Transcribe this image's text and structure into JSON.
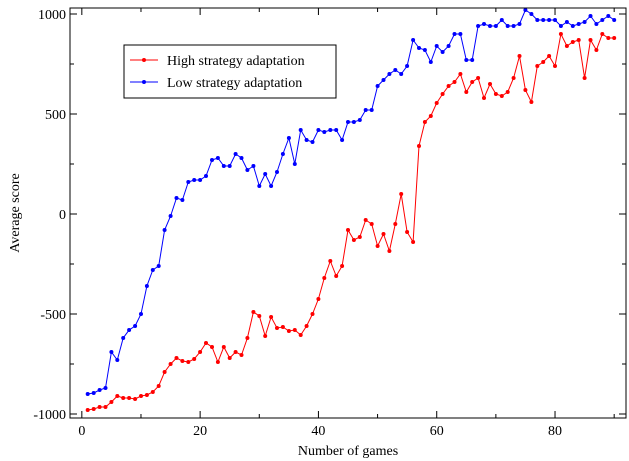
{
  "chart_data": {
    "type": "line",
    "title": "",
    "xlabel": "Number of games",
    "ylabel": "Average score",
    "xlim": [
      -2,
      92
    ],
    "ylim": [
      -1020,
      1030
    ],
    "xticks": [
      0,
      20,
      40,
      60,
      80
    ],
    "yticks": [
      -1000,
      -500,
      0,
      500,
      1000
    ],
    "xtick_labels": [
      "0",
      "20",
      "40",
      "60",
      "80"
    ],
    "ytick_labels": [
      "-1000",
      "-500",
      "0",
      "500",
      "1000"
    ],
    "grid": false,
    "legend": {
      "placement": "top-left",
      "boxed": true
    },
    "series": [
      {
        "name": "High strategy adaptation",
        "color": "#ff0000",
        "x": [
          1,
          2,
          3,
          4,
          5,
          6,
          7,
          8,
          9,
          10,
          11,
          12,
          13,
          14,
          15,
          16,
          17,
          18,
          19,
          20,
          21,
          22,
          23,
          24,
          25,
          26,
          27,
          28,
          29,
          30,
          31,
          32,
          33,
          34,
          35,
          36,
          37,
          38,
          39,
          40,
          41,
          42,
          43,
          44,
          45,
          46,
          47,
          48,
          49,
          50,
          51,
          52,
          53,
          54,
          55,
          56,
          57,
          58,
          59,
          60,
          61,
          62,
          63,
          64,
          65,
          66,
          67,
          68,
          69,
          70,
          71,
          72,
          73,
          74,
          75,
          76,
          77,
          78,
          79,
          80,
          81,
          82,
          83,
          84,
          85,
          86,
          87,
          88,
          89,
          90
        ],
        "y": [
          -980,
          -975,
          -965,
          -965,
          -940,
          -910,
          -920,
          -920,
          -925,
          -910,
          -905,
          -890,
          -860,
          -790,
          -750,
          -720,
          -735,
          -740,
          -725,
          -690,
          -645,
          -665,
          -740,
          -665,
          -720,
          -690,
          -705,
          -620,
          -490,
          -510,
          -610,
          -515,
          -570,
          -565,
          -585,
          -580,
          -605,
          -560,
          -500,
          -425,
          -320,
          -235,
          -310,
          -260,
          -80,
          -130,
          -115,
          -30,
          -50,
          -160,
          -100,
          -185,
          -50,
          100,
          -90,
          -140,
          340,
          460,
          490,
          555,
          600,
          640,
          660,
          700,
          610,
          660,
          680,
          580,
          650,
          600,
          590,
          610,
          680,
          790,
          620,
          560,
          740,
          760,
          790,
          740,
          900,
          840,
          860,
          870,
          680,
          870,
          820,
          900,
          880,
          880
        ]
      },
      {
        "name": "Low strategy adaptation",
        "color": "#0000ff",
        "x": [
          1,
          2,
          3,
          4,
          5,
          6,
          7,
          8,
          9,
          10,
          11,
          12,
          13,
          14,
          15,
          16,
          17,
          18,
          19,
          20,
          21,
          22,
          23,
          24,
          25,
          26,
          27,
          28,
          29,
          30,
          31,
          32,
          33,
          34,
          35,
          36,
          37,
          38,
          39,
          40,
          41,
          42,
          43,
          44,
          45,
          46,
          47,
          48,
          49,
          50,
          51,
          52,
          53,
          54,
          55,
          56,
          57,
          58,
          59,
          60,
          61,
          62,
          63,
          64,
          65,
          66,
          67,
          68,
          69,
          70,
          71,
          72,
          73,
          74,
          75,
          76,
          77,
          78,
          79,
          80,
          81,
          82,
          83,
          84,
          85,
          86,
          87,
          88,
          89,
          90
        ],
        "y": [
          -900,
          -895,
          -880,
          -870,
          -690,
          -730,
          -620,
          -580,
          -560,
          -500,
          -360,
          -280,
          -260,
          -80,
          -10,
          80,
          70,
          160,
          170,
          170,
          190,
          270,
          280,
          240,
          240,
          300,
          280,
          220,
          240,
          140,
          200,
          140,
          210,
          300,
          380,
          250,
          420,
          370,
          360,
          420,
          410,
          420,
          420,
          370,
          460,
          460,
          470,
          520,
          520,
          640,
          670,
          700,
          720,
          700,
          740,
          870,
          830,
          820,
          760,
          840,
          810,
          840,
          900,
          900,
          770,
          770,
          940,
          950,
          940,
          940,
          970,
          940,
          940,
          950,
          1020,
          1000,
          970,
          970,
          970,
          970,
          940,
          960,
          940,
          950,
          960,
          990,
          950,
          970,
          990,
          970
        ]
      }
    ]
  }
}
